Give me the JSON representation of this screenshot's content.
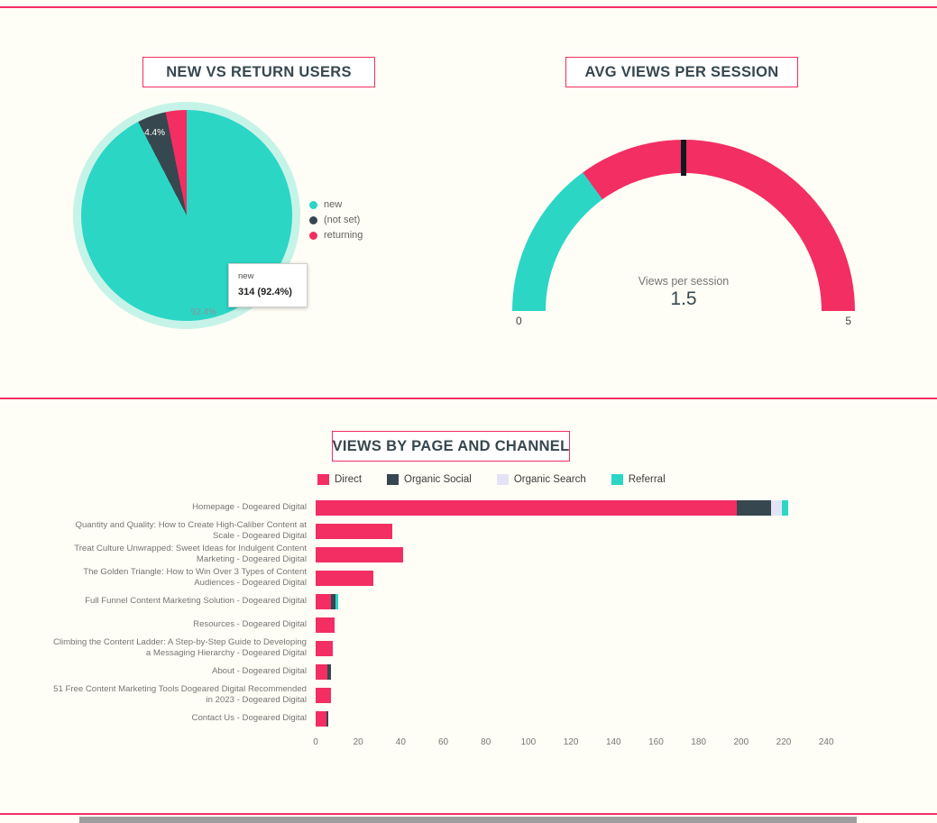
{
  "theme": {
    "background": "#FFFEF6",
    "accent_pink": "#F22E63",
    "teal": "#2BD6C5",
    "dark_slate": "#37474F",
    "lavender": "#E3E3F5",
    "gray_text": "#757575"
  },
  "chart_data": [
    {
      "type": "pie",
      "title": "NEW VS RETURN USERS",
      "legend_position": "right",
      "series": [
        {
          "label": "new",
          "value": 92.4,
          "color": "#2BD6C5"
        },
        {
          "label": "(not set)",
          "value": 4.4,
          "color": "#37474F"
        },
        {
          "label": "returning",
          "value": 3.2,
          "color": "#F22E63"
        }
      ],
      "data_labels": {
        "not_set": "4.4%",
        "new": "92.4%"
      },
      "tooltip": {
        "label": "new",
        "value_text": "314 (92.4%)"
      }
    },
    {
      "type": "gauge",
      "title": "AVG VIEWS PER SESSION",
      "caption": "Views per session",
      "value": 1.5,
      "value_text": "1.5",
      "min": 0,
      "max": 5,
      "min_label": "0",
      "max_label": "5",
      "segments": [
        {
          "color": "#2BD6C5",
          "from_pct": 0,
          "to_pct": 30
        },
        {
          "color": "#F22E63",
          "from_pct": 30,
          "to_pct": 100
        }
      ],
      "tick_pct": 50
    },
    {
      "type": "bar",
      "title": "VIEWS BY PAGE AND CHANNEL",
      "orientation": "horizontal",
      "stacked": true,
      "legend": [
        {
          "label": "Direct",
          "color": "#F22E63"
        },
        {
          "label": "Organic Social",
          "color": "#37474F"
        },
        {
          "label": "Organic Search",
          "color": "#E3E3F5"
        },
        {
          "label": "Referral",
          "color": "#2BD6C5"
        }
      ],
      "xlim": [
        0,
        245
      ],
      "x_ticks": [
        0,
        20,
        40,
        60,
        80,
        100,
        120,
        140,
        160,
        180,
        200,
        220,
        240
      ],
      "categories": [
        "Homepage - Dogeared Digital",
        "Quantity and Quality: How to Create High-Caliber Content at Scale - Dogeared Digital",
        "Treat Culture Unwrapped: Sweet Ideas for Indulgent Content Marketing - Dogeared Digital",
        "The Golden Triangle: How to Win Over 3 Types of Content Audiences - Dogeared Digital",
        "Full Funnel Content Marketing Solution - Dogeared Digital",
        "Resources - Dogeared Digital",
        "Climbing the Content Ladder: A Step-by-Step Guide to Developing a Messaging Hierarchy - Dogeared Digital",
        "About - Dogeared Digital",
        "51 Free Content Marketing Tools Dogeared Digital Recommended in 2023 - Dogeared Digital",
        "Contact Us - Dogeared Digital"
      ],
      "series": [
        {
          "name": "Direct",
          "color": "#F22E63",
          "values": [
            198,
            36,
            41,
            27,
            7,
            9,
            8,
            5.5,
            7,
            5
          ]
        },
        {
          "name": "Organic Social",
          "color": "#37474F",
          "values": [
            16,
            0,
            0,
            0,
            2.5,
            0,
            0,
            1.5,
            0,
            1
          ]
        },
        {
          "name": "Organic Search",
          "color": "#E3E3F5",
          "values": [
            5,
            0,
            0,
            0,
            0,
            0,
            0,
            0,
            0,
            0
          ]
        },
        {
          "name": "Referral",
          "color": "#2BD6C5",
          "values": [
            3,
            0,
            0,
            0,
            1,
            0,
            0,
            0,
            0,
            0
          ]
        }
      ]
    }
  ]
}
